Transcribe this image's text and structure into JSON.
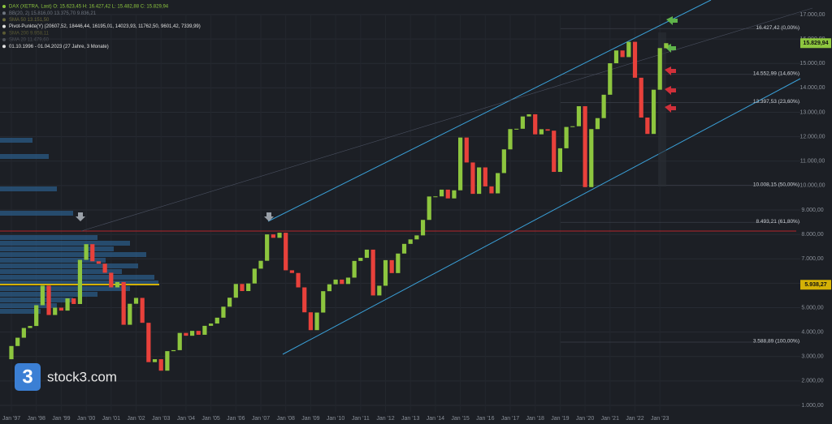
{
  "chart_data": {
    "type": "candlestick",
    "header": [
      "DAX (XETRA, Last)  O: 15.623,45  H: 16.427,42  L: 15.482,88  C: 15.829,94",
      "BB(20, 2)  15.816,00  13.375,70  9.836,21",
      "SMA 50  13.151,50",
      "Pivot-Punkte(Y)  (20607,52, 18446,44, 16195,01, 14023,93, 11762,50, 9601,42, 7339,99)",
      "SMA 200  9.958,11",
      "SMA 20  11.479,60",
      "01.10.1996 - 01.04.2023  (27 Jahre, 3 Monate)"
    ],
    "categories": [
      "Jan '97",
      null,
      null,
      null,
      "Jan '98",
      null,
      null,
      null,
      "Jan '99",
      null,
      null,
      null,
      "Jan '00",
      null,
      null,
      null,
      "Jan '01",
      null,
      null,
      null,
      "Jan '02",
      null,
      null,
      null,
      "Jan '03",
      null,
      null,
      null,
      "Jan '04",
      null,
      null,
      null,
      "Jan '05",
      null,
      null,
      null,
      "Jan '06",
      null,
      null,
      null,
      "Jan '07",
      null,
      null,
      null,
      "Jan '08",
      null,
      null,
      null,
      "Jan '09",
      null,
      null,
      null,
      "Jan '10",
      null,
      null,
      null,
      "Jan '11",
      null,
      null,
      null,
      "Jan '12",
      null,
      null,
      null,
      "Jan '13",
      null,
      null,
      null,
      "Jan '14",
      null,
      null,
      null,
      "Jan '15",
      null,
      null,
      null,
      "Jan '16",
      null,
      null,
      null,
      "Jan '17",
      null,
      null,
      null,
      "Jan '18",
      null,
      null,
      null,
      "Jan '19",
      null,
      null,
      null,
      "Jan '20",
      null,
      null,
      null,
      "Jan '21",
      null,
      null,
      null,
      "Jan '22",
      null,
      null,
      null,
      "Jan '23",
      null
    ],
    "open": [
      2889,
      3430,
      3770,
      4168,
      4250,
      5100,
      5900,
      4700,
      5000,
      4880,
      5380,
      5150,
      6958,
      7600,
      6900,
      6800,
      6430,
      5830,
      6050,
      4300,
      5160,
      5400,
      4380,
      2770,
      2890,
      2420,
      3220,
      3260,
      3965,
      3850,
      4050,
      3890,
      4256,
      4350,
      4590,
      5040,
      5408,
      5970,
      5680,
      5990,
      6597,
      6920,
      8000,
      7860,
      8067,
      6530,
      6420,
      5830,
      4810,
      4080,
      4800,
      5675,
      5957,
      6150,
      5970,
      6230,
      6914,
      7040,
      7376,
      5500,
      5898,
      6946,
      6416,
      7216,
      7612,
      7795,
      7959,
      8594,
      9552,
      9556,
      9833,
      9474,
      9806,
      11966,
      10945,
      9660,
      10743,
      9965,
      9680,
      10511,
      11481,
      12312,
      12325,
      12829,
      12918,
      12097,
      12306,
      12247,
      10559,
      11526,
      12399,
      12428,
      13249,
      9936,
      12311,
      12761,
      13719,
      15008,
      15531,
      15260,
      15885,
      14415,
      12784,
      12114,
      13924,
      15623.45
    ],
    "close": [
      3430,
      3770,
      4168,
      4250,
      5100,
      5900,
      4700,
      5000,
      4880,
      5380,
      5150,
      6958,
      7600,
      6900,
      6800,
      6430,
      5830,
      6050,
      4300,
      5160,
      5400,
      4380,
      2770,
      2890,
      2420,
      3220,
      3260,
      3965,
      3850,
      4050,
      3890,
      4256,
      4350,
      4590,
      5040,
      5408,
      5970,
      5680,
      5990,
      6597,
      6920,
      8000,
      7860,
      8067,
      6530,
      6420,
      5830,
      4810,
      4080,
      4800,
      5675,
      5957,
      6150,
      5970,
      6230,
      6914,
      7040,
      7376,
      5500,
      5898,
      6946,
      6416,
      7216,
      7612,
      7795,
      7959,
      8594,
      9552,
      9556,
      9833,
      9474,
      9806,
      11966,
      10945,
      9660,
      10743,
      9965,
      9680,
      10511,
      11481,
      12312,
      12325,
      12829,
      12918,
      12097,
      12306,
      12247,
      10559,
      11526,
      12399,
      12428,
      13249,
      9936,
      12311,
      12761,
      13719,
      15008,
      15531,
      15260,
      15885,
      14415,
      12784,
      12114,
      13924,
      15629,
      15829.94
    ],
    "up_color": "#8dc63f",
    "down_color": "#e8413b",
    "ylim": [
      1000,
      17000
    ],
    "yticks": [
      {
        "value": 1000,
        "label": "1.000,00"
      },
      {
        "value": 2000,
        "label": "2.000,00"
      },
      {
        "value": 3000,
        "label": "3.000,00"
      },
      {
        "value": 4000,
        "label": "4.000,00"
      },
      {
        "value": 5000,
        "label": "5.000,00"
      },
      {
        "value": 6000,
        "label": "6.000,00"
      },
      {
        "value": 7000,
        "label": "7.000,00"
      },
      {
        "value": 8000,
        "label": "8.000,00"
      },
      {
        "value": 9000,
        "label": "9.000,00"
      },
      {
        "value": 10000,
        "label": "10.000,00"
      },
      {
        "value": 11000,
        "label": "11.000,00"
      },
      {
        "value": 12000,
        "label": "12.000,00"
      },
      {
        "value": 13000,
        "label": "13.000,00"
      },
      {
        "value": 14000,
        "label": "14.000,00"
      },
      {
        "value": 15000,
        "label": "15.000,00"
      },
      {
        "value": 16000,
        "label": "16.000,00"
      },
      {
        "value": 17000,
        "label": "17.000,00"
      }
    ],
    "fib_levels": [
      {
        "value": 16427.42,
        "label": "16.427,42 (0,00%)"
      },
      {
        "value": 14552.99,
        "label": "14.552,99 (14,60%)"
      },
      {
        "value": 13397.53,
        "label": "13.397,53 (23,60%)"
      },
      {
        "value": 10008.15,
        "label": "10.008,15 (50,00%)"
      },
      {
        "value": 8493.21,
        "label": "8.493,21 (61,80%)"
      },
      {
        "value": 3588.89,
        "label": "3.588,89 (100,00%)"
      }
    ],
    "price_tags": [
      {
        "value": 15829.94,
        "label": "15.829,94",
        "color": "#8dc63f"
      },
      {
        "value": 5938.27,
        "label": "5.938,27",
        "color": "#d4b106"
      }
    ],
    "grid": true,
    "logo": {
      "icon": "3",
      "text": "stock3.com"
    }
  }
}
